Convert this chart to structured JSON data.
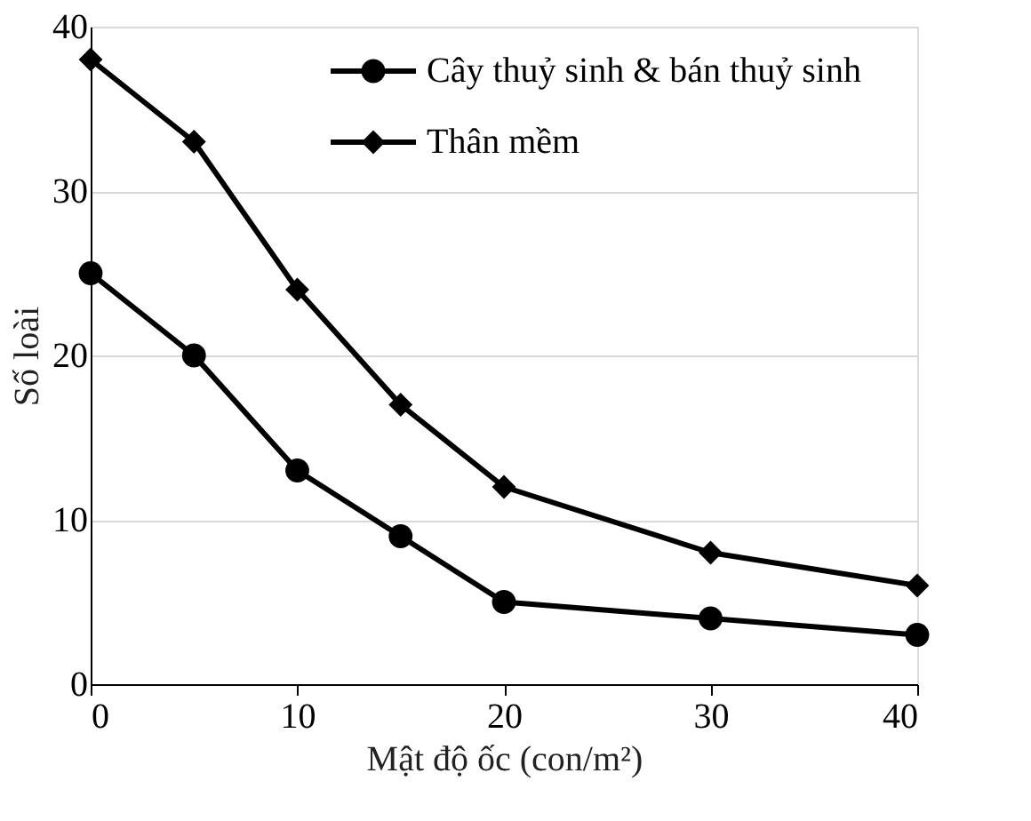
{
  "chart_data": {
    "type": "line",
    "xlabel": "Mật độ ốc (con/m²)",
    "ylabel": "Số loài",
    "x": [
      0,
      5,
      10,
      15,
      20,
      30,
      40
    ],
    "series": [
      {
        "name": "Cây thuỷ sinh & bán thuỷ sinh",
        "color": "#000000",
        "marker": "circle",
        "values": [
          25,
          20,
          13,
          9,
          5,
          4,
          3
        ]
      },
      {
        "name": "Thân mềm",
        "color": "#000000",
        "marker": "diamond",
        "values": [
          38,
          33,
          24,
          17,
          12,
          8,
          6
        ]
      }
    ],
    "xlim": [
      0,
      40
    ],
    "xticks": [
      0,
      10,
      20,
      30,
      40
    ],
    "ylim": [
      0,
      40
    ],
    "yticks": [
      0,
      10,
      20,
      30,
      40
    ],
    "grid": "y",
    "legend": "top right",
    "line_style": "solid"
  }
}
